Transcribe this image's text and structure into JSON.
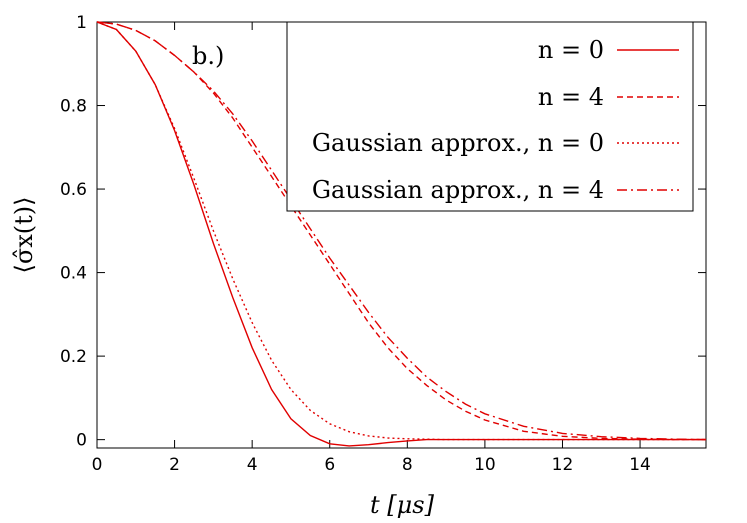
{
  "chart_data": {
    "type": "line",
    "annotation": "b.)",
    "xlabel": "t [μs]",
    "ylabel": "⟨σ̂x(t)⟩",
    "xlim": [
      0,
      15.7
    ],
    "ylim": [
      -0.02,
      1.0
    ],
    "x_ticks": [
      "0",
      "2",
      "4",
      "6",
      "8",
      "10",
      "12",
      "14"
    ],
    "y_ticks": [
      "0",
      "0.2",
      "0.4",
      "0.6",
      "0.8",
      "1"
    ],
    "grid": false,
    "legend_position": "top-right",
    "color": "#e00000",
    "series": [
      {
        "name": "n = 0",
        "dash": "solid",
        "x": [
          0,
          0.5,
          1,
          1.5,
          2,
          2.5,
          3,
          3.5,
          4,
          4.5,
          5,
          5.5,
          6,
          6.5,
          7,
          7.5,
          8,
          8.5,
          9,
          10,
          12,
          14,
          15.7
        ],
        "y": [
          1.0,
          0.982,
          0.93,
          0.85,
          0.74,
          0.61,
          0.47,
          0.34,
          0.22,
          0.12,
          0.05,
          0.01,
          -0.01,
          -0.015,
          -0.012,
          -0.007,
          -0.003,
          0.0,
          0.0,
          0.0,
          0.0,
          0.0,
          0.0
        ]
      },
      {
        "name": "n = 4",
        "dash": "dashed",
        "x": [
          0,
          0.5,
          1,
          1.5,
          2,
          2.5,
          3,
          3.5,
          4,
          4.5,
          5,
          5.5,
          6,
          6.5,
          7,
          7.5,
          8,
          8.5,
          9,
          9.5,
          10,
          11,
          12,
          13,
          14,
          15,
          15.7
        ],
        "y": [
          1.0,
          0.995,
          0.98,
          0.955,
          0.92,
          0.88,
          0.83,
          0.77,
          0.7,
          0.63,
          0.56,
          0.49,
          0.42,
          0.35,
          0.28,
          0.22,
          0.17,
          0.13,
          0.095,
          0.068,
          0.047,
          0.02,
          0.008,
          0.003,
          0.001,
          0.0,
          0.0
        ]
      },
      {
        "name": "Gaussian approx., n = 0",
        "dash": "dotted",
        "x": [
          0,
          0.5,
          1,
          1.5,
          2,
          2.5,
          3,
          3.5,
          4,
          4.5,
          5,
          5.5,
          6,
          6.5,
          7,
          7.5,
          8,
          9,
          10,
          12,
          14,
          15.7
        ],
        "y": [
          1.0,
          0.982,
          0.93,
          0.85,
          0.745,
          0.625,
          0.5,
          0.385,
          0.28,
          0.19,
          0.12,
          0.07,
          0.038,
          0.019,
          0.009,
          0.004,
          0.002,
          0.0,
          0.0,
          0.0,
          0.0,
          0.0
        ]
      },
      {
        "name": "Gaussian approx., n = 4",
        "dash": "dash-dot",
        "x": [
          0,
          0.5,
          1,
          1.5,
          2,
          2.5,
          3,
          3.5,
          4,
          4.5,
          5,
          5.5,
          6,
          6.5,
          7,
          7.5,
          8,
          8.5,
          9,
          9.5,
          10,
          11,
          12,
          13,
          14,
          15,
          15.7
        ],
        "y": [
          1.0,
          0.995,
          0.98,
          0.955,
          0.92,
          0.88,
          0.835,
          0.78,
          0.715,
          0.645,
          0.575,
          0.505,
          0.435,
          0.37,
          0.305,
          0.245,
          0.195,
          0.15,
          0.115,
          0.085,
          0.062,
          0.032,
          0.015,
          0.007,
          0.003,
          0.001,
          0.0
        ]
      }
    ]
  }
}
